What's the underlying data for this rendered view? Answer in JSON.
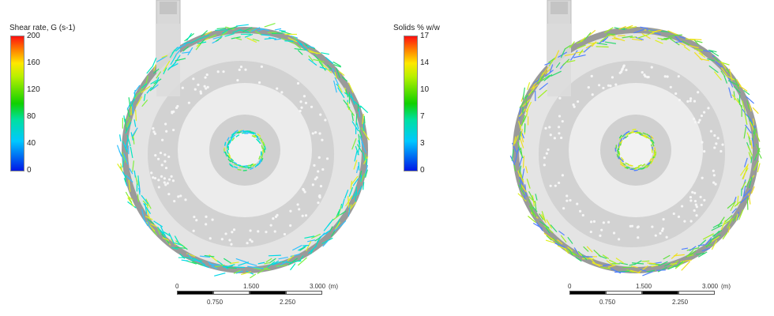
{
  "panels": [
    {
      "legend": {
        "title": "Shear rate, G (s-1)",
        "ticks": [
          "200",
          "160",
          "120",
          "80",
          "40",
          "0"
        ]
      },
      "scale": {
        "labels_top": [
          "0",
          "1.500",
          "3.000"
        ],
        "unit": "(m)",
        "labels_bottom": [
          "0.750",
          "2.250"
        ]
      },
      "arrow_palette": [
        "#00d8e8",
        "#00e8c0",
        "#20e070",
        "#80f040",
        "#30c0ff",
        "#e0f020"
      ]
    },
    {
      "legend": {
        "title": "Solids % w/w",
        "ticks": [
          "17",
          "14",
          "10",
          "7",
          "3",
          "0"
        ]
      },
      "scale": {
        "labels_top": [
          "0",
          "1.500",
          "3.000"
        ],
        "unit": "(m)",
        "labels_bottom": [
          "0.750",
          "2.250"
        ]
      },
      "arrow_palette": [
        "#a0f020",
        "#e0f020",
        "#60e040",
        "#30d870",
        "#f0e020",
        "#5080ff"
      ]
    }
  ]
}
